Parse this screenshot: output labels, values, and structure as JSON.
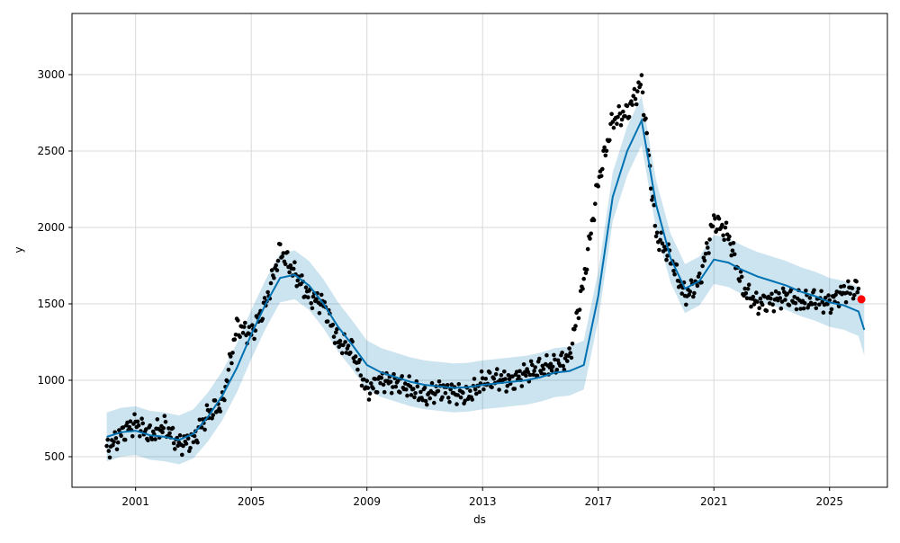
{
  "chart_data": {
    "type": "line",
    "title": "",
    "xlabel": "ds",
    "ylabel": "y",
    "xlim": [
      1998.8,
      2027.0
    ],
    "ylim": [
      300,
      3400
    ],
    "grid": true,
    "x_ticks": [
      2001,
      2005,
      2009,
      2013,
      2017,
      2021,
      2025
    ],
    "x_tick_labels": [
      "2001",
      "2005",
      "2009",
      "2013",
      "2017",
      "2021",
      "2025"
    ],
    "y_ticks": [
      500,
      1000,
      1500,
      2000,
      2500,
      3000
    ],
    "y_tick_labels": [
      "500",
      "1000",
      "1500",
      "2000",
      "2500",
      "3000"
    ],
    "colors": {
      "observed": "#000000",
      "forecast_line": "#0072B2",
      "uncertainty_band": "#0072B2",
      "highlight_point": "#ff0000",
      "grid": "#d9d9d9"
    },
    "series": [
      {
        "role": "observed",
        "x": [
          2000.0,
          2000.5,
          2001.0,
          2001.5,
          2002.0,
          2002.5,
          2003.0,
          2003.5,
          2004.0,
          2004.5,
          2005.0,
          2005.5,
          2006.0,
          2006.5,
          2007.0,
          2007.5,
          2008.0,
          2008.5,
          2009.0,
          2009.5,
          2010.0,
          2010.5,
          2011.0,
          2011.5,
          2012.0,
          2012.5,
          2013.0,
          2013.5,
          2014.0,
          2014.5,
          2015.0,
          2015.5,
          2016.0,
          2016.5,
          2017.0,
          2017.5,
          2018.0,
          2018.5,
          2019.0,
          2019.5,
          2020.0,
          2020.5,
          2021.0,
          2021.5,
          2022.0,
          2022.5,
          2023.0,
          2023.5,
          2024.0,
          2024.5,
          2025.0,
          2025.5,
          2026.0
        ],
        "y": [
          540,
          650,
          720,
          640,
          700,
          580,
          610,
          780,
          850,
          1350,
          1300,
          1500,
          1850,
          1700,
          1550,
          1500,
          1250,
          1200,
          930,
          1000,
          980,
          950,
          890,
          940,
          920,
          900,
          990,
          1010,
          990,
          1050,
          1080,
          1100,
          1150,
          1650,
          2300,
          2700,
          2750,
          2950,
          1950,
          1800,
          1550,
          1650,
          2050,
          1950,
          1600,
          1500,
          1520,
          1550,
          1510,
          1530,
          1500,
          1580,
          1600
        ]
      },
      {
        "role": "forecast",
        "x": [
          2000.0,
          2000.5,
          2001.0,
          2001.5,
          2002.0,
          2002.5,
          2003.0,
          2003.5,
          2004.0,
          2004.5,
          2005.0,
          2005.5,
          2006.0,
          2006.5,
          2007.0,
          2007.5,
          2008.0,
          2008.5,
          2009.0,
          2009.5,
          2010.0,
          2010.5,
          2011.0,
          2011.5,
          2012.0,
          2012.5,
          2013.0,
          2013.5,
          2014.0,
          2014.5,
          2015.0,
          2015.5,
          2016.0,
          2016.5,
          2017.0,
          2017.5,
          2018.0,
          2018.5,
          2019.0,
          2019.5,
          2020.0,
          2020.5,
          2021.0,
          2021.5,
          2022.0,
          2022.5,
          2023.0,
          2023.5,
          2024.0,
          2024.5,
          2025.0,
          2025.5,
          2026.0,
          2026.2
        ],
        "y": [
          630,
          660,
          670,
          640,
          630,
          610,
          650,
          760,
          900,
          1080,
          1300,
          1500,
          1670,
          1690,
          1620,
          1500,
          1350,
          1230,
          1100,
          1050,
          1020,
          990,
          970,
          960,
          950,
          955,
          970,
          980,
          990,
          1000,
          1020,
          1050,
          1060,
          1100,
          1550,
          2200,
          2500,
          2700,
          2150,
          1800,
          1600,
          1650,
          1790,
          1770,
          1720,
          1680,
          1650,
          1620,
          1580,
          1550,
          1510,
          1490,
          1450,
          1330
        ]
      },
      {
        "role": "uncertainty_band",
        "x": [
          2000.0,
          2000.5,
          2001.0,
          2001.5,
          2002.0,
          2002.5,
          2003.0,
          2003.5,
          2004.0,
          2004.5,
          2005.0,
          2005.5,
          2006.0,
          2006.5,
          2007.0,
          2007.5,
          2008.0,
          2008.5,
          2009.0,
          2009.5,
          2010.0,
          2010.5,
          2011.0,
          2011.5,
          2012.0,
          2012.5,
          2013.0,
          2013.5,
          2014.0,
          2014.5,
          2015.0,
          2015.5,
          2016.0,
          2016.5,
          2017.0,
          2017.5,
          2018.0,
          2018.5,
          2019.0,
          2019.5,
          2020.0,
          2020.5,
          2021.0,
          2021.5,
          2022.0,
          2022.5,
          2023.0,
          2023.5,
          2024.0,
          2024.5,
          2025.0,
          2025.5,
          2026.0,
          2026.2
        ],
        "y_low": [
          470,
          500,
          510,
          480,
          470,
          450,
          490,
          600,
          740,
          920,
          1140,
          1340,
          1510,
          1530,
          1460,
          1340,
          1190,
          1070,
          940,
          890,
          860,
          830,
          810,
          800,
          790,
          795,
          810,
          820,
          830,
          840,
          860,
          890,
          900,
          940,
          1390,
          2040,
          2340,
          2540,
          1990,
          1640,
          1440,
          1490,
          1630,
          1610,
          1560,
          1520,
          1490,
          1460,
          1420,
          1390,
          1350,
          1330,
          1290,
          1160
        ],
        "y_high": [
          790,
          820,
          830,
          800,
          790,
          770,
          810,
          920,
          1060,
          1240,
          1460,
          1660,
          1830,
          1850,
          1780,
          1660,
          1510,
          1390,
          1260,
          1210,
          1180,
          1150,
          1130,
          1120,
          1110,
          1115,
          1130,
          1140,
          1150,
          1160,
          1180,
          1210,
          1220,
          1260,
          1710,
          2360,
          2660,
          2860,
          2310,
          1960,
          1760,
          1810,
          1950,
          1930,
          1880,
          1840,
          1810,
          1780,
          1740,
          1710,
          1670,
          1650,
          1610,
          1500
        ]
      },
      {
        "role": "highlight",
        "x": [
          2026.1
        ],
        "y": [
          1530
        ]
      }
    ]
  }
}
